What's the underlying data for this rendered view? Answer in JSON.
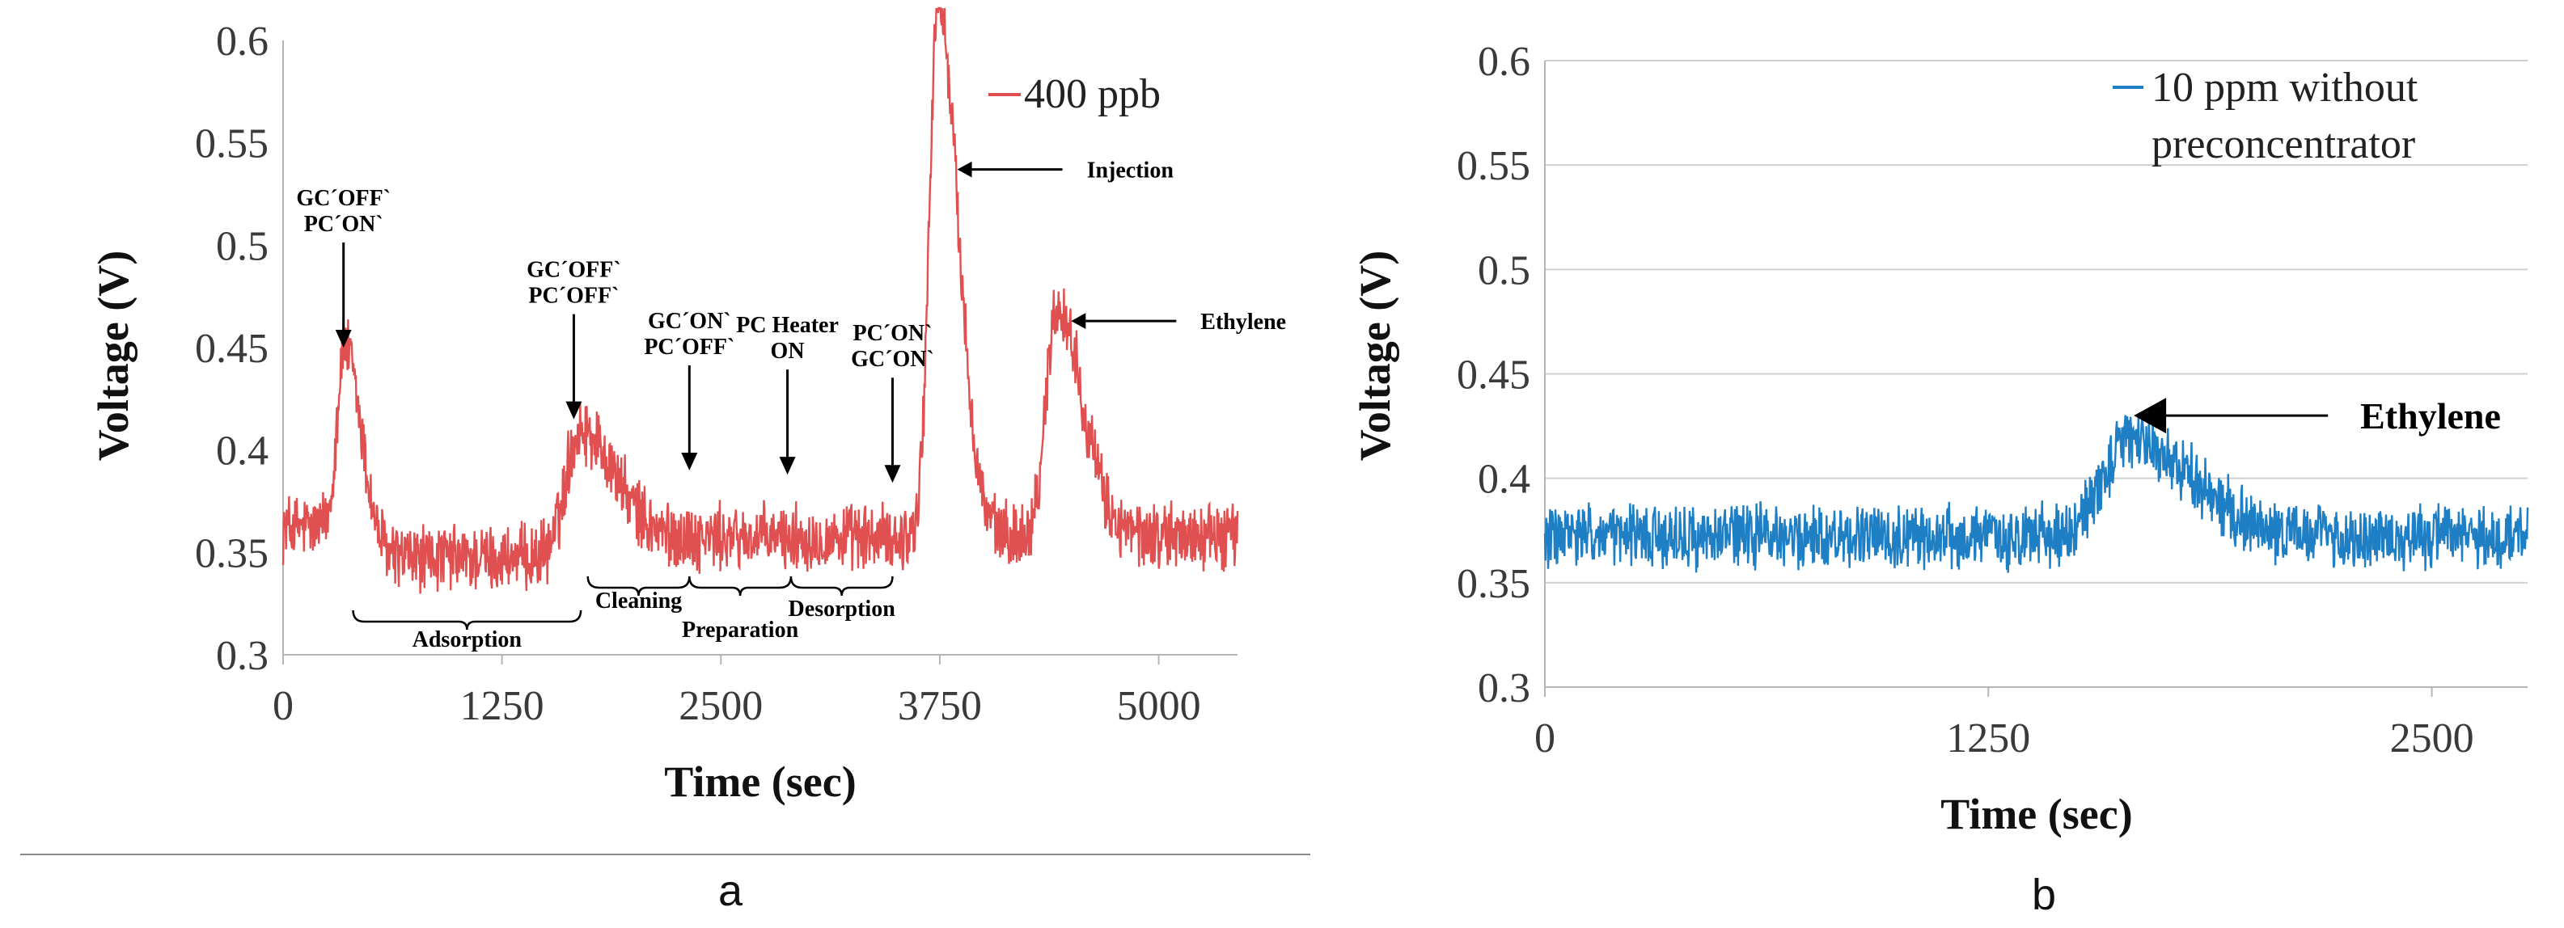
{
  "chart_data": [
    {
      "type": "line",
      "panel": "a",
      "xlabel": "Time (sec)",
      "ylabel": "Voltage (V)",
      "xlim": [
        0,
        5450
      ],
      "ylim": [
        0.3,
        0.6
      ],
      "xticks": [
        0,
        1250,
        2500,
        3750,
        5000
      ],
      "xtick_labels": [
        "0",
        "1250",
        "2500",
        "3750",
        "5000"
      ],
      "yticks": [
        0.3,
        0.35,
        0.4,
        0.45,
        0.5,
        0.55,
        0.6
      ],
      "ytick_labels": [
        "0.3",
        "0.35",
        "0.4",
        "0.45",
        "0.5",
        "0.55",
        "0.6"
      ],
      "grid": false,
      "legend_position": "top-right",
      "color": "#e05050",
      "series": [
        {
          "name": "400 ppb",
          "baseline": 0.358,
          "noise": 0.028,
          "segments": [
            {
              "from": 0,
              "to": 380,
              "level": 0.362
            },
            {
              "from": 380,
              "to": 1620,
              "level": 0.347
            },
            {
              "from": 1620,
              "to": 3560,
              "level": 0.357
            },
            {
              "from": 3560,
              "to": 5450,
              "level": 0.358
            }
          ],
          "peaks": [
            {
              "x": 350,
              "y": 0.45,
              "width": 60
            },
            {
              "x": 1700,
              "y": 0.41,
              "width": 120
            },
            {
              "x": 3740,
              "y": 0.62,
              "width": 70
            },
            {
              "x": 4420,
              "y": 0.47,
              "width": 90
            }
          ]
        }
      ],
      "annotations": [
        {
          "lines": [
            "GC´OFF`",
            "PC´ON`"
          ],
          "x": 345,
          "y": 0.45,
          "arrow": "down"
        },
        {
          "lines": [
            "GC´OFF`",
            "PC´OFF`"
          ],
          "x": 1660,
          "y": 0.415,
          "arrow": "down"
        },
        {
          "lines": [
            "GC´ON`",
            "PC´OFF`"
          ],
          "x": 2320,
          "y": 0.39,
          "arrow": "down"
        },
        {
          "lines": [
            "PC Heater",
            "ON"
          ],
          "x": 2880,
          "y": 0.388,
          "arrow": "down"
        },
        {
          "lines": [
            "PC´ON`",
            "GC´ON`"
          ],
          "x": 3480,
          "y": 0.384,
          "arrow": "down"
        },
        {
          "lines": [
            "Injection"
          ],
          "x": 3850,
          "y": 0.537,
          "arrow": "left"
        },
        {
          "lines": [
            "Ethylene"
          ],
          "x": 4500,
          "y": 0.463,
          "arrow": "left"
        }
      ],
      "phases": [
        {
          "label": "Adsorption",
          "from": 400,
          "to": 1700
        },
        {
          "label": "Cleaning",
          "from": 1740,
          "to": 2320
        },
        {
          "label": "Preparation",
          "from": 2320,
          "to": 2900
        },
        {
          "label": "Desorption",
          "from": 2900,
          "to": 3480
        }
      ]
    },
    {
      "type": "line",
      "panel": "b",
      "xlabel": "Time (sec)",
      "ylabel": "Voltage (V)",
      "xlim": [
        0,
        2770
      ],
      "ylim": [
        0.3,
        0.6
      ],
      "xticks": [
        0,
        1250,
        2500
      ],
      "xtick_labels": [
        "0",
        "1250",
        "2500"
      ],
      "yticks": [
        0.3,
        0.35,
        0.4,
        0.45,
        0.5,
        0.55,
        0.6
      ],
      "ytick_labels": [
        "0.3",
        "0.35",
        "0.4",
        "0.45",
        "0.5",
        "0.55",
        "0.6"
      ],
      "grid": true,
      "legend_position": "top-right",
      "color": "#1f7fc4",
      "series": [
        {
          "name": "10 ppm without preconcentrator",
          "baseline": 0.372,
          "noise": 0.026,
          "segments": [
            {
              "from": 0,
              "to": 2770,
              "level": 0.372
            }
          ],
          "peaks": [
            {
              "x": 1650,
              "y": 0.418,
              "width": 110
            }
          ]
        }
      ],
      "annotations": [
        {
          "lines": [
            "Ethylene"
          ],
          "x": 1660,
          "y": 0.43,
          "arrow": "left"
        }
      ]
    }
  ],
  "panels": [
    {
      "label": "a"
    },
    {
      "label": "b"
    }
  ],
  "legend": {
    "a_lines": [
      "400 ppb"
    ],
    "b_lines": [
      "10 ppm without",
      "preconcentrator"
    ]
  }
}
